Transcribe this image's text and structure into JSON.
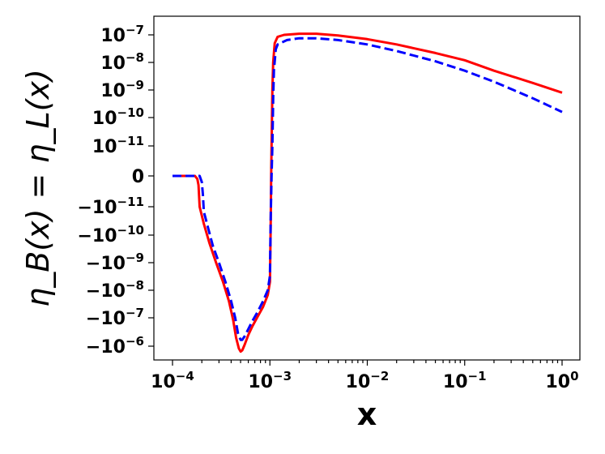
{
  "chart_data": {
    "type": "line",
    "xscale": "log",
    "yscale": "symlog",
    "xlim": [
      0.0001,
      1
    ],
    "xlabel": "x",
    "ylabel": "η_B(x) = η_L(x)",
    "x_ticks": [
      {
        "value": 0.0001,
        "base": "10",
        "exp": "−4"
      },
      {
        "value": 0.001,
        "base": "10",
        "exp": "−3"
      },
      {
        "value": 0.01,
        "base": "10",
        "exp": "−2"
      },
      {
        "value": 0.1,
        "base": "10",
        "exp": "−1"
      },
      {
        "value": 1,
        "base": "10",
        "exp": "0"
      }
    ],
    "y_ticks": [
      {
        "value": 1e-07,
        "base": "10",
        "exp": "−7"
      },
      {
        "value": 1e-08,
        "base": "10",
        "exp": "−8"
      },
      {
        "value": 1e-09,
        "base": "10",
        "exp": "−9"
      },
      {
        "value": 1e-10,
        "base": "10",
        "exp": "−10"
      },
      {
        "value": 1e-11,
        "base": "10",
        "exp": "−11"
      },
      {
        "value": 0,
        "base": "0",
        "exp": ""
      },
      {
        "value": -1e-11,
        "base": "−10",
        "exp": "−11"
      },
      {
        "value": -1e-10,
        "base": "−10",
        "exp": "−10"
      },
      {
        "value": -1e-09,
        "base": "−10",
        "exp": "−9"
      },
      {
        "value": -1e-08,
        "base": "−10",
        "exp": "−8"
      },
      {
        "value": -1e-07,
        "base": "−10",
        "exp": "−7"
      },
      {
        "value": -1e-06,
        "base": "−10",
        "exp": "−6"
      }
    ],
    "grid": false,
    "series": [
      {
        "color": "#ff0000",
        "style": "solid",
        "points": [
          [
            0.0001,
            0
          ],
          [
            0.00015,
            0
          ],
          [
            0.00017,
            0
          ],
          [
            0.00018,
            -1e-12
          ],
          [
            0.000185,
            -3e-12
          ],
          [
            0.00019,
            -1e-11
          ],
          [
            0.00021,
            -4e-11
          ],
          [
            0.00024,
            -2e-10
          ],
          [
            0.00028,
            -1e-09
          ],
          [
            0.00033,
            -5e-09
          ],
          [
            0.00038,
            -2.5e-08
          ],
          [
            0.00042,
            -1.2e-07
          ],
          [
            0.00045,
            -5e-07
          ],
          [
            0.00048,
            -1.2e-06
          ],
          [
            0.0005,
            -1.55e-06
          ],
          [
            0.00052,
            -1.4e-06
          ],
          [
            0.00055,
            -9e-07
          ],
          [
            0.0006,
            -4e-07
          ],
          [
            0.00066,
            -2e-07
          ],
          [
            0.00075,
            -9e-08
          ],
          [
            0.00085,
            -4e-08
          ],
          [
            0.00095,
            -1.5e-08
          ],
          [
            0.001,
            -5e-09
          ],
          [
            0.00102,
            -3e-11
          ],
          [
            0.00103,
            0
          ],
          [
            0.00104,
            1e-11
          ],
          [
            0.00106,
            1e-09
          ],
          [
            0.00108,
            1e-08
          ],
          [
            0.00112,
            5e-08
          ],
          [
            0.0012,
            8.5e-08
          ],
          [
            0.0014,
            1e-07
          ],
          [
            0.002,
            1.1e-07
          ],
          [
            0.003,
            1.1e-07
          ],
          [
            0.005,
            9.5e-08
          ],
          [
            0.01,
            7e-08
          ],
          [
            0.02,
            4.5e-08
          ],
          [
            0.05,
            2.2e-08
          ],
          [
            0.1,
            1.2e-08
          ],
          [
            0.2,
            5e-09
          ],
          [
            0.5,
            1.8e-09
          ],
          [
            1.0,
            8e-10
          ]
        ]
      },
      {
        "color": "#0000ff",
        "style": "dashed",
        "points": [
          [
            0.0001,
            0
          ],
          [
            0.00016,
            0
          ],
          [
            0.00019,
            0
          ],
          [
            0.0002,
            -2e-12
          ],
          [
            0.000205,
            -6e-12
          ],
          [
            0.00021,
            -1.5e-11
          ],
          [
            0.00023,
            -5e-11
          ],
          [
            0.00026,
            -2.5e-10
          ],
          [
            0.0003,
            -1e-09
          ],
          [
            0.00035,
            -5e-09
          ],
          [
            0.0004,
            -2.5e-08
          ],
          [
            0.00044,
            -1e-07
          ],
          [
            0.00047,
            -3.5e-07
          ],
          [
            0.0005,
            -6e-07
          ],
          [
            0.00052,
            -6e-07
          ],
          [
            0.00055,
            -4.5e-07
          ],
          [
            0.0006,
            -2.5e-07
          ],
          [
            0.00066,
            -1.3e-07
          ],
          [
            0.00075,
            -6e-08
          ],
          [
            0.00085,
            -2.5e-08
          ],
          [
            0.00095,
            -1e-08
          ],
          [
            0.001,
            -3e-09
          ],
          [
            0.00102,
            -2e-11
          ],
          [
            0.00104,
            0
          ],
          [
            0.00106,
            1e-11
          ],
          [
            0.00108,
            5e-10
          ],
          [
            0.0011,
            5e-09
          ],
          [
            0.00115,
            3e-08
          ],
          [
            0.0012,
            4.5e-08
          ],
          [
            0.0015,
            6.5e-08
          ],
          [
            0.002,
            7.5e-08
          ],
          [
            0.003,
            7.5e-08
          ],
          [
            0.005,
            6.5e-08
          ],
          [
            0.01,
            4.5e-08
          ],
          [
            0.02,
            2.6e-08
          ],
          [
            0.05,
            1.1e-08
          ],
          [
            0.1,
            5e-09
          ],
          [
            0.2,
            2e-09
          ],
          [
            0.5,
            5e-10
          ],
          [
            1.0,
            1.6e-10
          ]
        ]
      }
    ]
  }
}
